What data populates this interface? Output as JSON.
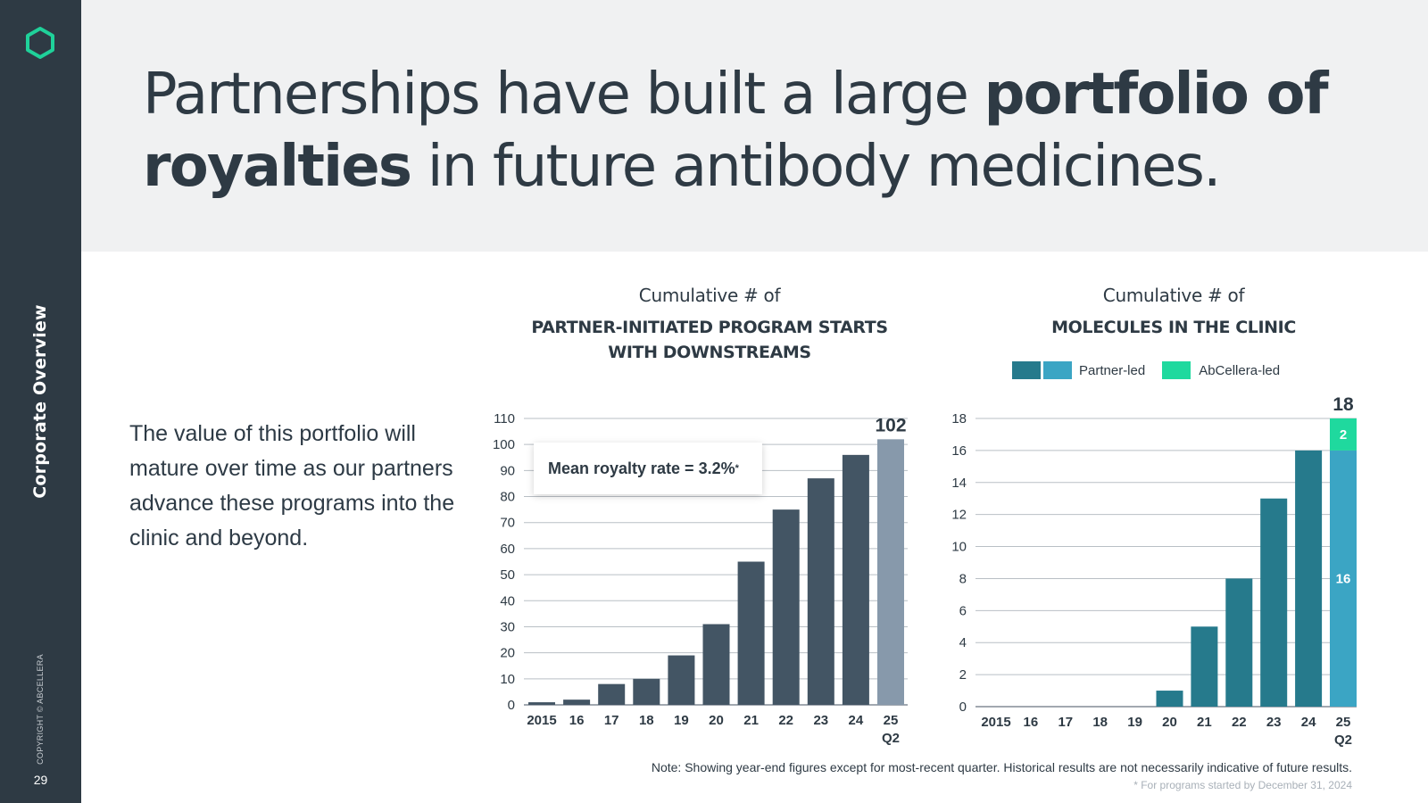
{
  "sidebar": {
    "section_label": "Corporate Overview",
    "copyright": "COPYRIGHT © ABCELLERA",
    "page_number": "29",
    "accent_color": "#1fd19a"
  },
  "headline": {
    "part1": "Partnerships have built a large ",
    "bold1": "portfolio of royalties",
    "part2": " in future antibody medicines."
  },
  "body_text": "The value of this portfolio will mature over time as our partners advance these programs into the clinic and beyond.",
  "callout": {
    "text": "Mean royalty rate = 3.2%",
    "marker": "*"
  },
  "legend": {
    "partner_label": "Partner-led",
    "abcellera_label": "AbCellera-led"
  },
  "note": "Note: Showing year-end figures except for most-recent quarter. Historical results are not necessarily indicative of future results.",
  "footnote": "* For programs started by December 31, 2024",
  "chart_data": [
    {
      "type": "bar",
      "title": "PARTNER-INITIATED PROGRAM STARTS WITH DOWNSTREAMS",
      "subtitle": "Cumulative # of",
      "categories": [
        "2015",
        "16",
        "17",
        "18",
        "19",
        "20",
        "21",
        "22",
        "23",
        "24",
        "25"
      ],
      "category_sublabels": [
        "",
        "",
        "",
        "",
        "",
        "",
        "",
        "",
        "",
        "",
        "Q2"
      ],
      "values": [
        1,
        2,
        8,
        10,
        19,
        31,
        55,
        75,
        87,
        96,
        102
      ],
      "data_labels": [
        "",
        "",
        "",
        "",
        "",
        "",
        "",
        "",
        "",
        "",
        "102"
      ],
      "ylim": [
        0,
        110
      ],
      "yticks": [
        0,
        10,
        20,
        30,
        40,
        50,
        60,
        70,
        80,
        90,
        100,
        110
      ],
      "grid": true,
      "colors": {
        "bar": "#435564",
        "highlight": "#8799ab"
      }
    },
    {
      "type": "bar",
      "stacked": true,
      "title": "MOLECULES IN THE CLINIC",
      "subtitle": "Cumulative # of",
      "categories": [
        "2015",
        "16",
        "17",
        "18",
        "19",
        "20",
        "21",
        "22",
        "23",
        "24",
        "25"
      ],
      "category_sublabels": [
        "",
        "",
        "",
        "",
        "",
        "",
        "",
        "",
        "",
        "",
        "Q2"
      ],
      "series": [
        {
          "name": "Partner-led",
          "values": [
            0,
            0,
            0,
            0,
            0,
            1,
            5,
            8,
            13,
            16,
            16
          ]
        },
        {
          "name": "AbCellera-led",
          "values": [
            0,
            0,
            0,
            0,
            0,
            0,
            0,
            0,
            0,
            0,
            2
          ]
        }
      ],
      "segment_labels": {
        "partner_last": "16",
        "abcellera_last": "2"
      },
      "total_label": "18",
      "ylim": [
        0,
        18
      ],
      "yticks": [
        0,
        2,
        4,
        6,
        8,
        10,
        12,
        14,
        16,
        18
      ],
      "grid": true,
      "legend_position": "top",
      "colors": {
        "partner": "#267a8c",
        "partner_highlight": "#3ba5c4",
        "abcellera": "#1fd99e"
      }
    }
  ]
}
